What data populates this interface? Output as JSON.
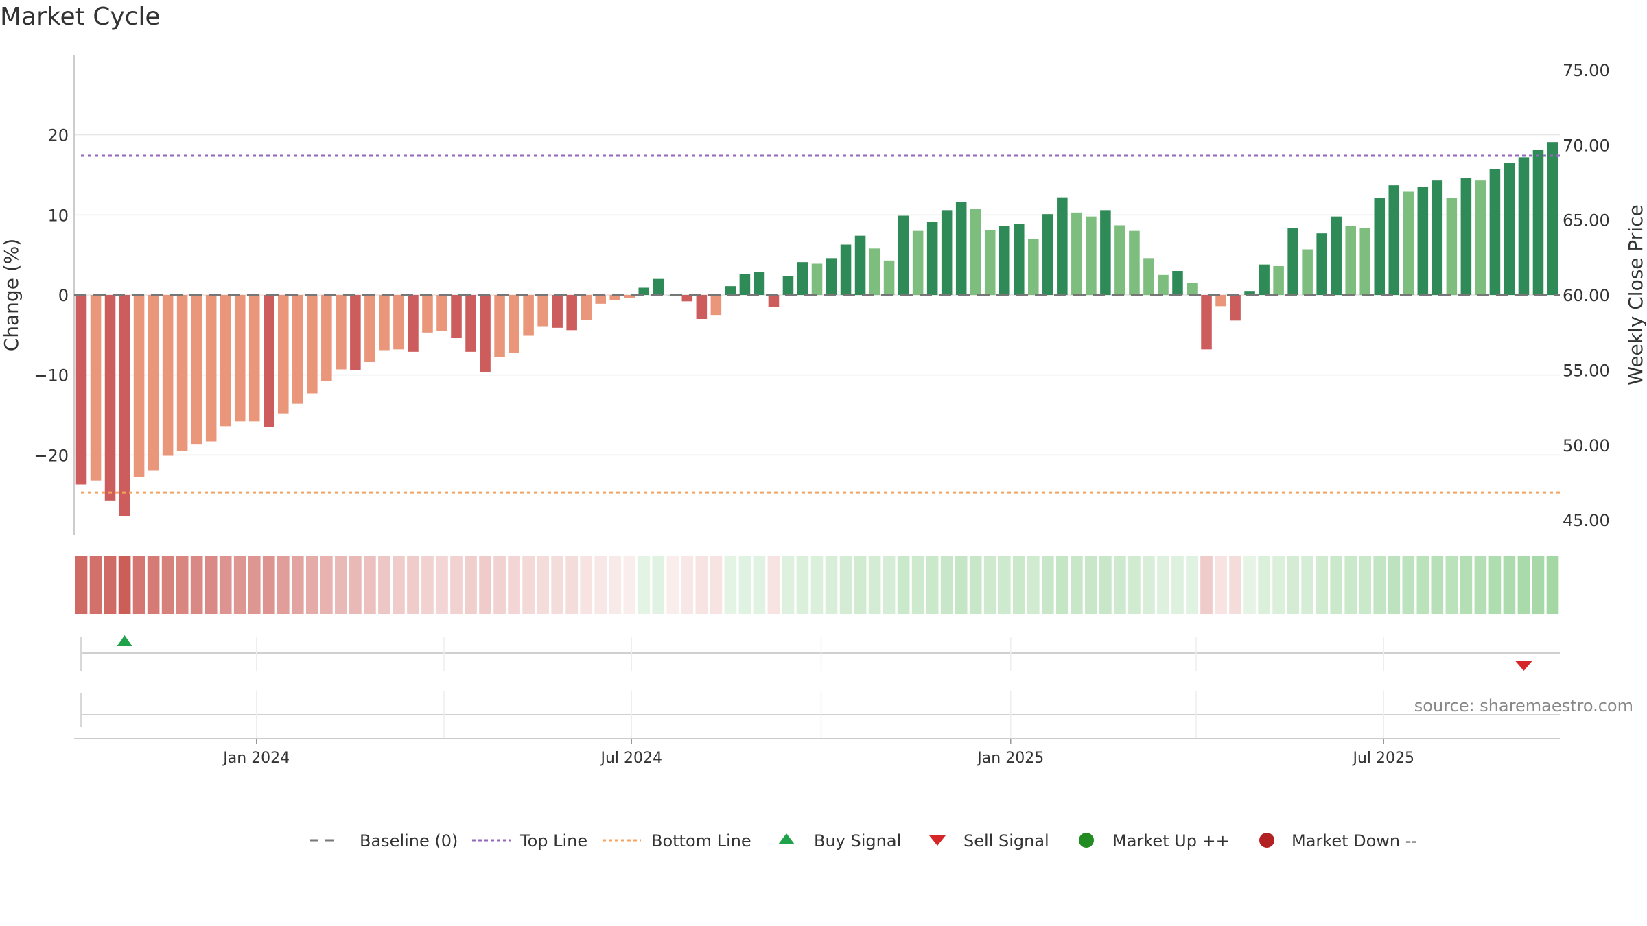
{
  "title": "Market Cycle",
  "source": "source: sharemaestro.com",
  "colors": {
    "strong_up": "#2e8b57",
    "up": "#7dbd7d",
    "strong_down": "#cd5c5c",
    "down": "#e9967a",
    "top_line": "#9467bd",
    "bottom_line": "#f4a460",
    "baseline": "#777777",
    "buy": "#1fa34a",
    "sell": "#d62728",
    "market_up": "#228b22",
    "market_down": "#b22222"
  },
  "chart_data": {
    "type": "bar",
    "x_dates": [
      "2023-10-08",
      "2023-10-15",
      "2023-10-22",
      "2023-10-29",
      "2023-11-05",
      "2023-11-12",
      "2023-11-19",
      "2023-11-26",
      "2023-12-03",
      "2023-12-10",
      "2023-12-17",
      "2023-12-24",
      "2023-12-31",
      "2024-01-07",
      "2024-01-14",
      "2024-01-21",
      "2024-01-28",
      "2024-02-04",
      "2024-02-11",
      "2024-02-18",
      "2024-02-25",
      "2024-03-03",
      "2024-03-10",
      "2024-03-17",
      "2024-03-24",
      "2024-03-31",
      "2024-04-07",
      "2024-04-14",
      "2024-04-21",
      "2024-04-28",
      "2024-05-05",
      "2024-05-12",
      "2024-05-19",
      "2024-05-26",
      "2024-06-02",
      "2024-06-09",
      "2024-06-16",
      "2024-06-23",
      "2024-06-30",
      "2024-07-07",
      "2024-07-14",
      "2024-07-21",
      "2024-07-28",
      "2024-08-04",
      "2024-08-11",
      "2024-08-18",
      "2024-08-25",
      "2024-09-01",
      "2024-09-08",
      "2024-09-15",
      "2024-09-22",
      "2024-09-29",
      "2024-10-06",
      "2024-10-13",
      "2024-10-20",
      "2024-10-27",
      "2024-11-03",
      "2024-11-10",
      "2024-11-17",
      "2024-11-24",
      "2024-12-01",
      "2024-12-08",
      "2024-12-15",
      "2024-12-22",
      "2024-12-29",
      "2025-01-05",
      "2025-01-12",
      "2025-01-19",
      "2025-01-26",
      "2025-02-02",
      "2025-02-09",
      "2025-02-16",
      "2025-02-23",
      "2025-03-02",
      "2025-03-09",
      "2025-03-16",
      "2025-03-23",
      "2025-03-30",
      "2025-04-06",
      "2025-04-13",
      "2025-04-20",
      "2025-04-27",
      "2025-05-04",
      "2025-05-11",
      "2025-05-18",
      "2025-05-25",
      "2025-06-01",
      "2025-06-08",
      "2025-06-15",
      "2025-06-22",
      "2025-06-29",
      "2025-07-06",
      "2025-07-13",
      "2025-07-20",
      "2025-07-27",
      "2025-08-03",
      "2025-08-10",
      "2025-08-17",
      "2025-08-24",
      "2025-08-31",
      "2025-09-07",
      "2025-09-14",
      "2025-09-21"
    ],
    "change_pct": [
      -23.7,
      -23.2,
      -25.7,
      -27.6,
      -22.8,
      -21.9,
      -20.1,
      -19.5,
      -18.7,
      -18.3,
      -16.4,
      -15.8,
      -15.8,
      -16.5,
      -14.8,
      -13.6,
      -12.3,
      -10.8,
      -9.3,
      -9.4,
      -8.4,
      -6.9,
      -6.8,
      -7.1,
      -4.7,
      -4.5,
      -5.4,
      -7.1,
      -9.6,
      -7.8,
      -7.2,
      -5.1,
      -3.9,
      -4.1,
      -4.4,
      -3.1,
      -1.1,
      -0.6,
      -0.4,
      0.9,
      2.0,
      0.0,
      -0.8,
      -3.0,
      -2.5,
      1.1,
      2.6,
      2.9,
      -1.5,
      2.4,
      4.1,
      3.9,
      4.6,
      6.3,
      7.4,
      5.8,
      4.3,
      9.9,
      8.0,
      9.1,
      10.6,
      11.6,
      10.8,
      8.1,
      8.6,
      8.9,
      7.0,
      10.1,
      12.2,
      10.3,
      9.8,
      10.6,
      8.7,
      8.0,
      4.6,
      2.5,
      3.0,
      1.5,
      -6.8,
      -1.4,
      -3.2,
      0.5,
      3.8,
      3.6,
      8.4,
      5.7,
      7.7,
      9.8,
      8.6,
      8.4,
      12.1,
      13.7,
      12.9,
      13.5,
      14.3,
      12.1,
      14.6,
      14.3,
      15.7,
      16.5,
      17.2,
      18.1,
      19.1
    ],
    "bar_strength": [
      "strong",
      "moderate",
      "strong",
      "strong",
      "moderate",
      "moderate",
      "moderate",
      "moderate",
      "moderate",
      "moderate",
      "moderate",
      "moderate",
      "moderate",
      "strong",
      "moderate",
      "moderate",
      "moderate",
      "moderate",
      "moderate",
      "strong",
      "moderate",
      "moderate",
      "moderate",
      "strong",
      "moderate",
      "moderate",
      "strong",
      "strong",
      "strong",
      "moderate",
      "moderate",
      "moderate",
      "moderate",
      "strong",
      "strong",
      "moderate",
      "moderate",
      "moderate",
      "moderate",
      "strong",
      "strong",
      "moderate",
      "strong",
      "strong",
      "moderate",
      "strong",
      "strong",
      "strong",
      "strong",
      "strong",
      "strong",
      "moderate",
      "strong",
      "strong",
      "strong",
      "moderate",
      "moderate",
      "strong",
      "moderate",
      "strong",
      "strong",
      "strong",
      "moderate",
      "moderate",
      "strong",
      "strong",
      "moderate",
      "strong",
      "strong",
      "moderate",
      "moderate",
      "strong",
      "moderate",
      "moderate",
      "moderate",
      "moderate",
      "strong",
      "moderate",
      "strong",
      "moderate",
      "strong",
      "strong",
      "strong",
      "moderate",
      "strong",
      "moderate",
      "strong",
      "strong",
      "moderate",
      "moderate",
      "strong",
      "strong",
      "moderate",
      "strong",
      "strong",
      "moderate",
      "strong",
      "moderate",
      "strong",
      "strong",
      "strong",
      "strong",
      "strong"
    ],
    "heat_intensity": [
      0.85,
      0.82,
      0.85,
      0.92,
      0.78,
      0.76,
      0.72,
      0.7,
      0.68,
      0.67,
      0.62,
      0.6,
      0.6,
      0.62,
      0.56,
      0.52,
      0.48,
      0.44,
      0.4,
      0.4,
      0.36,
      0.32,
      0.3,
      0.3,
      0.26,
      0.24,
      0.26,
      0.28,
      0.3,
      0.26,
      0.24,
      0.22,
      0.2,
      0.2,
      0.2,
      0.16,
      0.14,
      0.12,
      0.1,
      0.2,
      0.22,
      0.1,
      0.14,
      0.16,
      0.16,
      0.2,
      0.22,
      0.22,
      0.16,
      0.24,
      0.26,
      0.26,
      0.28,
      0.32,
      0.34,
      0.32,
      0.3,
      0.38,
      0.36,
      0.38,
      0.4,
      0.42,
      0.4,
      0.36,
      0.36,
      0.38,
      0.34,
      0.4,
      0.42,
      0.4,
      0.4,
      0.4,
      0.36,
      0.34,
      0.28,
      0.24,
      0.24,
      0.22,
      0.3,
      0.16,
      0.2,
      0.18,
      0.26,
      0.26,
      0.32,
      0.3,
      0.34,
      0.38,
      0.38,
      0.38,
      0.44,
      0.48,
      0.48,
      0.5,
      0.52,
      0.5,
      0.54,
      0.54,
      0.58,
      0.6,
      0.62,
      0.64,
      0.66
    ],
    "heat_sign": [
      -1,
      -1,
      -1,
      -1,
      -1,
      -1,
      -1,
      -1,
      -1,
      -1,
      -1,
      -1,
      -1,
      -1,
      -1,
      -1,
      -1,
      -1,
      -1,
      -1,
      -1,
      -1,
      -1,
      -1,
      -1,
      -1,
      -1,
      -1,
      -1,
      -1,
      -1,
      -1,
      -1,
      -1,
      -1,
      -1,
      -1,
      -1,
      -1,
      1,
      1,
      -1,
      -1,
      -1,
      -1,
      1,
      1,
      1,
      -1,
      1,
      1,
      1,
      1,
      1,
      1,
      1,
      1,
      1,
      1,
      1,
      1,
      1,
      1,
      1,
      1,
      1,
      1,
      1,
      1,
      1,
      1,
      1,
      1,
      1,
      1,
      1,
      1,
      1,
      -1,
      -1,
      -1,
      1,
      1,
      1,
      1,
      1,
      1,
      1,
      1,
      1,
      1,
      1,
      1,
      1,
      1,
      1,
      1,
      1,
      1,
      1,
      1,
      1,
      1
    ],
    "left_axis": {
      "label": "Change (%)",
      "ylim": [
        -30,
        30
      ],
      "ticks": [
        -20,
        -10,
        0,
        10,
        20
      ],
      "tick_labels": [
        "−20",
        "−10",
        "0",
        "10",
        "20"
      ]
    },
    "right_axis": {
      "label": "Weekly Close Price",
      "ylim": [
        44,
        76
      ],
      "ticks": [
        45,
        50,
        55,
        60,
        65,
        70,
        75
      ],
      "tick_labels": [
        "45.00",
        "50.00",
        "55.00",
        "60.00",
        "65.00",
        "70.00",
        "75.00"
      ]
    },
    "top_line": 17.4,
    "bottom_line": -24.7,
    "baseline": 0,
    "x_ticks": [
      {
        "date": "2024-01-01",
        "label": "Jan 2024"
      },
      {
        "date": "2024-07-01",
        "label": "Jul 2024"
      },
      {
        "date": "2025-01-01",
        "label": "Jan 2025"
      },
      {
        "date": "2025-07-01",
        "label": "Jul 2025"
      }
    ],
    "buy_signals": [
      "2023-10-29"
    ],
    "sell_signals": [
      "2025-09-07"
    ],
    "grid": true,
    "legend_position": "bottom",
    "legend": [
      {
        "key": "baseline",
        "label": "Baseline (0)"
      },
      {
        "key": "top_line",
        "label": "Top Line"
      },
      {
        "key": "bottom_line",
        "label": "Bottom Line"
      },
      {
        "key": "buy",
        "label": "Buy Signal"
      },
      {
        "key": "sell",
        "label": "Sell Signal"
      },
      {
        "key": "market_up",
        "label": "Market Up ++"
      },
      {
        "key": "market_down",
        "label": "Market Down --"
      }
    ]
  }
}
